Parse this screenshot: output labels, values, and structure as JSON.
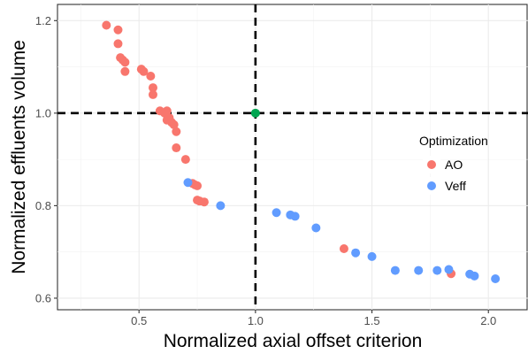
{
  "chart_data": {
    "type": "scatter",
    "xlabel": "Normalized axial offset criterion",
    "ylabel": "Normalized effluents volume",
    "xlim": [
      0.15,
      2.17
    ],
    "ylim": [
      0.575,
      1.235
    ],
    "x_ticks": [
      0.5,
      1.0,
      1.5,
      2.0
    ],
    "x_tick_labels": [
      "0.5",
      "1.0",
      "1.5",
      "2.0"
    ],
    "y_ticks": [
      0.6,
      0.8,
      1.0,
      1.2
    ],
    "y_tick_labels": [
      "0.6",
      "0.8",
      "1.0",
      "1.2"
    ],
    "grid": true,
    "reference_lines": {
      "x": 1.0,
      "y": 1.0,
      "style": "dashed",
      "color": "#000000"
    },
    "reference_point": {
      "x": 1.0,
      "y": 1.0,
      "color": "#00a651"
    },
    "legend": {
      "title": "Optimization",
      "position": "right",
      "entries": [
        {
          "label": "AO",
          "color": "#f8766d"
        },
        {
          "label": "Veff",
          "color": "#619cff"
        }
      ]
    },
    "series": [
      {
        "name": "AO",
        "color": "#f8766d",
        "points": [
          [
            0.36,
            1.19
          ],
          [
            0.41,
            1.18
          ],
          [
            0.41,
            1.15
          ],
          [
            0.42,
            1.12
          ],
          [
            0.43,
            1.115
          ],
          [
            0.44,
            1.11
          ],
          [
            0.44,
            1.09
          ],
          [
            0.51,
            1.095
          ],
          [
            0.52,
            1.09
          ],
          [
            0.55,
            1.08
          ],
          [
            0.56,
            1.055
          ],
          [
            0.56,
            1.04
          ],
          [
            0.59,
            1.005
          ],
          [
            0.61,
            1.0
          ],
          [
            0.62,
            1.005
          ],
          [
            0.63,
            0.99
          ],
          [
            0.62,
            0.985
          ],
          [
            0.64,
            0.98
          ],
          [
            0.65,
            0.975
          ],
          [
            0.66,
            0.96
          ],
          [
            0.66,
            0.925
          ],
          [
            0.7,
            0.9
          ],
          [
            0.73,
            0.848
          ],
          [
            0.74,
            0.845
          ],
          [
            0.75,
            0.843
          ],
          [
            0.75,
            0.812
          ],
          [
            0.76,
            0.81
          ],
          [
            0.78,
            0.808
          ],
          [
            1.38,
            0.707
          ],
          [
            1.84,
            0.653
          ]
        ]
      },
      {
        "name": "Veff",
        "color": "#619cff",
        "points": [
          [
            0.71,
            0.85
          ],
          [
            0.85,
            0.8
          ],
          [
            1.09,
            0.785
          ],
          [
            1.15,
            0.78
          ],
          [
            1.17,
            0.777
          ],
          [
            1.26,
            0.752
          ],
          [
            1.43,
            0.698
          ],
          [
            1.5,
            0.69
          ],
          [
            1.6,
            0.66
          ],
          [
            1.7,
            0.66
          ],
          [
            1.78,
            0.66
          ],
          [
            1.83,
            0.662
          ],
          [
            1.92,
            0.652
          ],
          [
            1.94,
            0.648
          ],
          [
            2.03,
            0.642
          ]
        ]
      }
    ]
  }
}
